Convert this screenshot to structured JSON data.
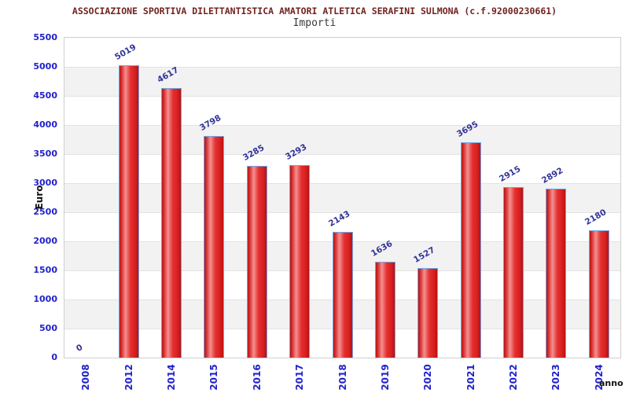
{
  "header": {
    "title": "ASSOCIAZIONE SPORTIVA DILETTANTISTICA AMATORI ATLETICA SERAFINI SULMONA (c.f.92000230661)",
    "subtitle": "Importi"
  },
  "chart_data": {
    "type": "bar",
    "title": "ASSOCIAZIONE SPORTIVA DILETTANTISTICA AMATORI ATLETICA SERAFINI SULMONA (c.f.92000230661)",
    "subtitle": "Importi",
    "xlabel": "anno",
    "ylabel": "Euro",
    "categories": [
      "2008",
      "2012",
      "2014",
      "2015",
      "2016",
      "2017",
      "2018",
      "2019",
      "2020",
      "2021",
      "2022",
      "2023",
      "2024"
    ],
    "values": [
      0,
      5019,
      4617,
      3798,
      3285,
      3293,
      2143,
      1636,
      1527,
      3695,
      2915,
      2892,
      2180
    ],
    "ylim": [
      0,
      5500
    ],
    "ytick_step": 500,
    "yticks": [
      0,
      500,
      1000,
      1500,
      2000,
      2500,
      3000,
      3500,
      4000,
      4500,
      5000,
      5500
    ],
    "grid": "horizontal alternating bands, light gridline every 500",
    "legend": null,
    "colors": {
      "title": "#722222",
      "subtitle": "#3a3a3a",
      "tick_label": "#2222cc",
      "value_label": "#333399",
      "axis_title": "#111111",
      "bar_fill": "#e02020",
      "bar_border": "#6fa8e8",
      "band_gray": "#f2f2f2",
      "band_white": "#ffffff",
      "gridline": "#e3e3e3",
      "plot_border": "#cfcfcf"
    }
  }
}
